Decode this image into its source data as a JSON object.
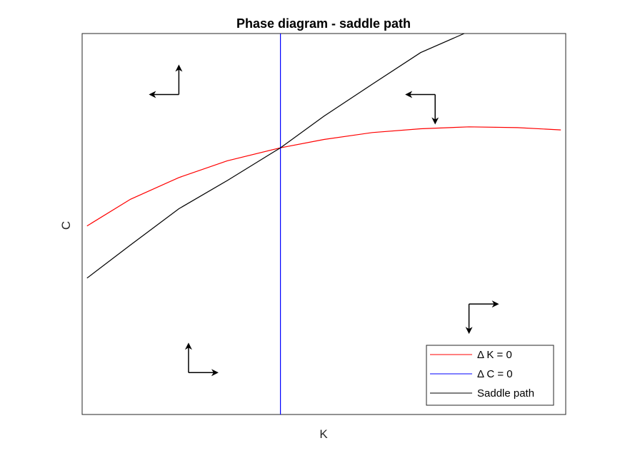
{
  "chart_data": {
    "type": "line",
    "title": "Phase diagram - saddle path",
    "xlabel": "K",
    "ylabel": "C",
    "xlim": [
      0,
      1
    ],
    "ylim": [
      0,
      1
    ],
    "grid": false,
    "legend": {
      "placement": "bottom-right",
      "entries": [
        "Δ K = 0",
        "Δ C = 0",
        "Saddle path"
      ]
    },
    "series": [
      {
        "name": "Δ K = 0",
        "color": "#ff0000",
        "x": [
          0.01,
          0.1,
          0.2,
          0.3,
          0.41,
          0.5,
          0.6,
          0.7,
          0.8,
          0.9,
          0.99
        ],
        "y": [
          0.495,
          0.565,
          0.622,
          0.666,
          0.7,
          0.722,
          0.74,
          0.75,
          0.755,
          0.753,
          0.747
        ]
      },
      {
        "name": "Δ C = 0",
        "color": "#0000ff",
        "x": [
          0.41,
          0.41
        ],
        "y": [
          0,
          1
        ]
      },
      {
        "name": "Saddle path",
        "color": "#000000",
        "x": [
          0.01,
          0.1,
          0.2,
          0.3,
          0.41,
          0.5,
          0.6,
          0.7,
          0.79
        ],
        "y": [
          0.358,
          0.445,
          0.54,
          0.614,
          0.7,
          0.783,
          0.867,
          0.95,
          1.0
        ]
      }
    ],
    "annotations": [
      {
        "name": "arrow-pair-upper-left",
        "x": 0.2,
        "y": 0.84,
        "horizontal": "left",
        "vertical": "up"
      },
      {
        "name": "arrow-pair-upper-right",
        "x": 0.73,
        "y": 0.84,
        "horizontal": "left",
        "vertical": "down"
      },
      {
        "name": "arrow-pair-lower-left",
        "x": 0.22,
        "y": 0.11,
        "horizontal": "right",
        "vertical": "up"
      },
      {
        "name": "arrow-pair-lower-right",
        "x": 0.8,
        "y": 0.29,
        "horizontal": "right",
        "vertical": "down"
      }
    ]
  }
}
